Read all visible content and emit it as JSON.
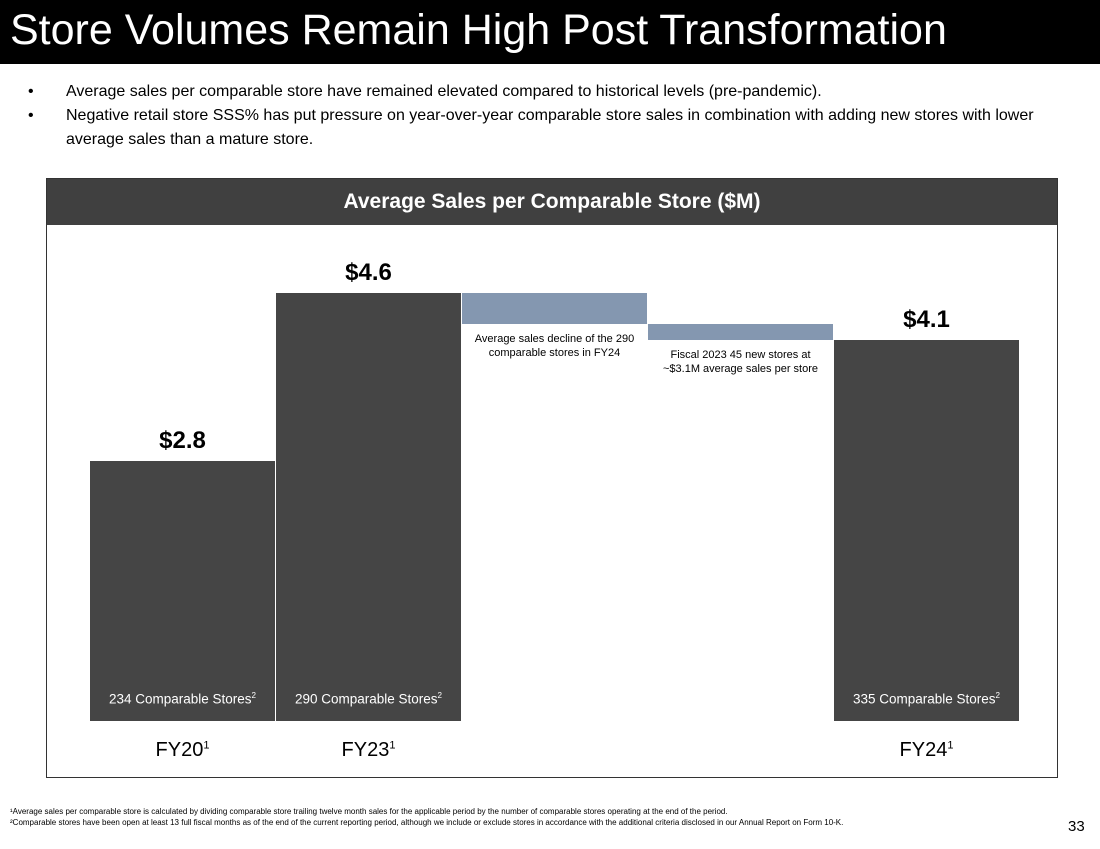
{
  "header": {
    "title": "Store Volumes Remain High Post Transformation"
  },
  "bullets": [
    "Average sales per comparable store have remained elevated compared to historical levels (pre-pandemic).",
    "Negative retail store SSS% has put pressure on year-over-year comparable store sales in combination with adding new stores with lower average sales than a mature store."
  ],
  "chart_data": {
    "type": "waterfall",
    "title": "Average Sales per Comparable Store ($M)",
    "categories": [
      "FY20",
      "FY23",
      null,
      null,
      "FY24"
    ],
    "category_marks": [
      "1",
      "1",
      null,
      null,
      "1"
    ],
    "measure": [
      "absolute",
      "absolute",
      "relative",
      "relative",
      "absolute"
    ],
    "values": [
      2.8,
      4.6,
      -0.33,
      -0.17,
      4.1
    ],
    "value_labels": [
      "$2.8",
      "$4.6",
      null,
      null,
      "$4.1"
    ],
    "bar_notes": [
      "234 Comparable Stores",
      "290 Comparable Stores",
      null,
      null,
      "335 Comparable Stores"
    ],
    "bar_note_marks": [
      "2",
      "2",
      null,
      null,
      "2"
    ],
    "annotations": [
      null,
      null,
      "Average sales decline of the 290 comparable stores in FY24",
      "Fiscal 2023 45 new stores at ~$3.1M average sales per store",
      null
    ],
    "total_color": "#454545",
    "delta_color": "#8497b0"
  },
  "footnotes": [
    "¹Average sales per comparable store is calculated by dividing comparable store trailing twelve month sales for the applicable period by the number of comparable stores operating at the end of the period.",
    "²Comparable stores have been open at least 13 full fiscal months as of the end of the current reporting period, although we include or exclude stores in accordance with the additional criteria disclosed in our Annual Report on Form 10-K."
  ],
  "page_number": "33"
}
